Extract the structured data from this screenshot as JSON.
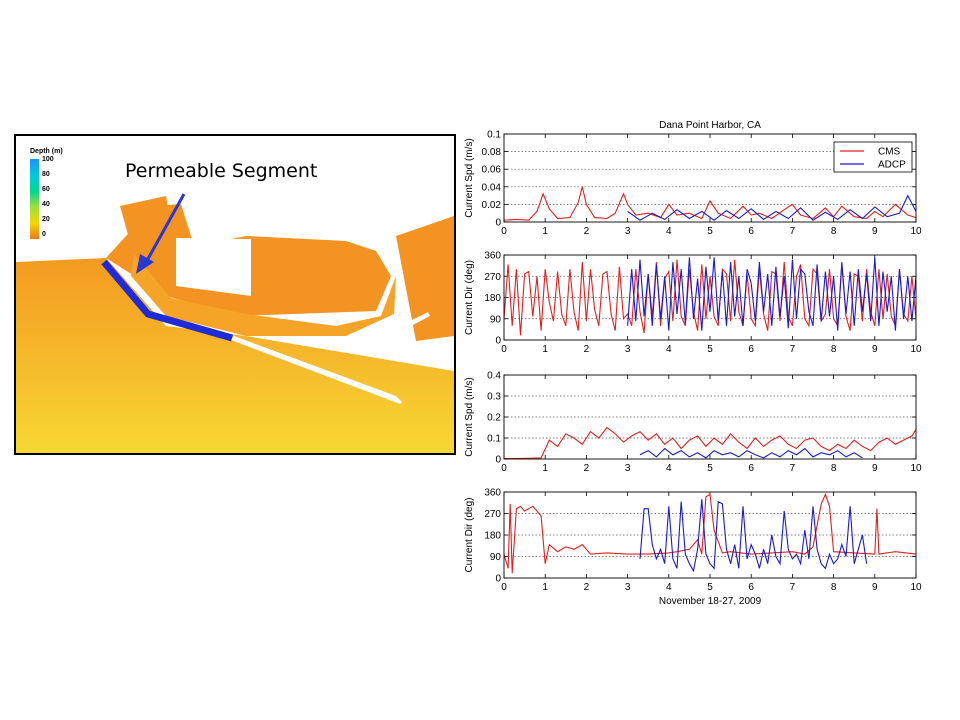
{
  "map": {
    "legend": {
      "title": "Depth (m)",
      "labels": [
        "100",
        "80",
        "60",
        "40",
        "20",
        "0"
      ],
      "colors": [
        "#1e90ff",
        "#00c8e0",
        "#00d890",
        "#9be03c",
        "#f0d800",
        "#f07818"
      ]
    },
    "annotation": "Permeable Segment",
    "colors": {
      "deep": "#f4d230",
      "shallow": "#f3951c",
      "land": "#ffffff",
      "segment": "#1f2bd6",
      "arrow": "#2838d0"
    }
  },
  "chart_data": [
    {
      "type": "line",
      "title": "Dana Point Harbor, CA",
      "ylabel": "Current Spd (m/s)",
      "xlim": [
        0,
        10
      ],
      "ylim": [
        0,
        0.1
      ],
      "yticks": [
        "0",
        "0.02",
        "0.04",
        "0.06",
        "0.08",
        "0.1"
      ],
      "xticks": [
        "0",
        "1",
        "2",
        "3",
        "4",
        "5",
        "6",
        "7",
        "8",
        "9",
        "10"
      ],
      "legend": [
        "CMS",
        "ADCP"
      ],
      "legend_position": "top-right",
      "grid": "horizontal dotted",
      "series": [
        {
          "name": "CMS",
          "color": "#e02020",
          "x": [
            0,
            0.3,
            0.6,
            0.8,
            0.95,
            1.1,
            1.3,
            1.6,
            1.8,
            1.9,
            2.0,
            2.2,
            2.5,
            2.7,
            2.9,
            3.0,
            3.2,
            3.5,
            3.8,
            4.0,
            4.2,
            4.5,
            4.8,
            5.0,
            5.2,
            5.5,
            5.8,
            6.0,
            6.2,
            6.5,
            6.8,
            7.0,
            7.2,
            7.5,
            7.8,
            8.0,
            8.2,
            8.5,
            8.8,
            9.0,
            9.2,
            9.5,
            9.8,
            10
          ],
          "y": [
            0.002,
            0.003,
            0.002,
            0.012,
            0.032,
            0.015,
            0.004,
            0.005,
            0.022,
            0.04,
            0.02,
            0.005,
            0.004,
            0.01,
            0.032,
            0.02,
            0.008,
            0.01,
            0.005,
            0.02,
            0.008,
            0.01,
            0.004,
            0.024,
            0.01,
            0.004,
            0.018,
            0.008,
            0.01,
            0.004,
            0.014,
            0.02,
            0.008,
            0.004,
            0.016,
            0.006,
            0.018,
            0.006,
            0.004,
            0.012,
            0.006,
            0.02,
            0.008,
            0.005
          ]
        },
        {
          "name": "ADCP",
          "color": "#1a1ad0",
          "x": [
            3.0,
            3.3,
            3.6,
            3.9,
            4.2,
            4.5,
            4.8,
            5.1,
            5.4,
            5.7,
            6.0,
            6.3,
            6.6,
            6.9,
            7.2,
            7.5,
            7.8,
            8.1,
            8.4,
            8.7,
            9.0,
            9.3,
            9.6,
            9.8,
            10
          ],
          "y": [
            0.012,
            0.002,
            0.01,
            0.003,
            0.014,
            0.004,
            0.012,
            0.002,
            0.013,
            0.004,
            0.015,
            0.003,
            0.012,
            0.004,
            0.016,
            0.002,
            0.011,
            0.003,
            0.014,
            0.004,
            0.017,
            0.006,
            0.01,
            0.03,
            0.012
          ]
        }
      ]
    },
    {
      "type": "line",
      "ylabel": "Current Dir (deg)",
      "xlim": [
        0,
        10
      ],
      "ylim": [
        0,
        360
      ],
      "yticks": [
        "0",
        "90",
        "180",
        "270",
        "360"
      ],
      "xticks": [
        "0",
        "1",
        "2",
        "3",
        "4",
        "5",
        "6",
        "7",
        "8",
        "9",
        "10"
      ],
      "grid": "horizontal dotted",
      "series": [
        {
          "name": "CMS",
          "color": "#e02020",
          "x": [
            0,
            0.1,
            0.2,
            0.3,
            0.4,
            0.5,
            0.6,
            0.7,
            0.8,
            0.9,
            1.0,
            1.1,
            1.2,
            1.3,
            1.4,
            1.5,
            1.6,
            1.7,
            1.8,
            1.9,
            2.0,
            2.1,
            2.2,
            2.3,
            2.4,
            2.5,
            2.6,
            2.7,
            2.8,
            2.9,
            3.0,
            3.1,
            3.2,
            3.3,
            3.4,
            3.5,
            3.6,
            3.7,
            3.8,
            3.9,
            4.0,
            4.1,
            4.2,
            4.3,
            4.4,
            4.5,
            4.6,
            4.7,
            4.8,
            4.9,
            5.0,
            5.1,
            5.2,
            5.3,
            5.4,
            5.5,
            5.6,
            5.7,
            5.8,
            5.9,
            6.0,
            6.1,
            6.2,
            6.3,
            6.4,
            6.5,
            6.6,
            6.7,
            6.8,
            6.9,
            7.0,
            7.1,
            7.2,
            7.3,
            7.4,
            7.5,
            7.6,
            7.7,
            7.8,
            7.9,
            8.0,
            8.1,
            8.2,
            8.3,
            8.4,
            8.5,
            8.6,
            8.7,
            8.8,
            8.9,
            9.0,
            9.1,
            9.2,
            9.3,
            9.4,
            9.5,
            9.6,
            9.7,
            9.8,
            9.9,
            10
          ],
          "y": [
            90,
            320,
            60,
            300,
            20,
            280,
            290,
            100,
            270,
            40,
            300,
            160,
            80,
            290,
            110,
            60,
            300,
            120,
            40,
            330,
            80,
            300,
            130,
            60,
            280,
            290,
            110,
            40,
            310,
            90,
            110,
            60,
            300,
            120,
            30,
            280,
            100,
            330,
            60,
            260,
            290,
            80,
            340,
            100,
            60,
            300,
            120,
            40,
            320,
            90,
            270,
            100,
            60,
            300,
            280,
            80,
            340,
            120,
            60,
            280,
            90,
            60,
            300,
            110,
            40,
            290,
            280,
            80,
            330,
            100,
            60,
            270,
            320,
            90,
            60,
            300,
            280,
            80,
            110,
            300,
            90,
            60,
            320,
            100,
            40,
            280,
            270,
            80,
            300,
            120,
            60,
            300,
            90,
            280,
            100,
            60,
            300,
            110,
            80,
            270,
            90
          ]
        },
        {
          "name": "ADCP",
          "color": "#1a1ad0",
          "x": [
            3.0,
            3.1,
            3.2,
            3.3,
            3.4,
            3.5,
            3.6,
            3.7,
            3.8,
            3.9,
            4.0,
            4.1,
            4.2,
            4.3,
            4.4,
            4.5,
            4.6,
            4.7,
            4.8,
            4.9,
            5.0,
            5.1,
            5.2,
            5.3,
            5.4,
            5.5,
            5.6,
            5.7,
            5.8,
            5.9,
            6.0,
            6.1,
            6.2,
            6.3,
            6.4,
            6.5,
            6.6,
            6.7,
            6.8,
            6.9,
            7.0,
            7.1,
            7.2,
            7.3,
            7.4,
            7.5,
            7.6,
            7.7,
            7.8,
            7.9,
            8.0,
            8.1,
            8.2,
            8.3,
            8.4,
            8.5,
            8.6,
            8.7,
            8.8,
            8.9,
            9.0,
            9.1,
            9.2,
            9.3,
            9.4,
            9.5,
            9.6,
            9.7,
            9.8,
            9.9,
            10
          ],
          "y": [
            60,
            300,
            80,
            340,
            100,
            280,
            60,
            320,
            90,
            270,
            40,
            330,
            110,
            300,
            70,
            350,
            90,
            260,
            40,
            310,
            120,
            350,
            80,
            290,
            60,
            330,
            100,
            270,
            60,
            300,
            240,
            80,
            330,
            120,
            280,
            60,
            310,
            100,
            270,
            50,
            340,
            90,
            300,
            280,
            120,
            60,
            320,
            80,
            290,
            100,
            270,
            40,
            330,
            110,
            290,
            60,
            300,
            120,
            280,
            80,
            350,
            60,
            290,
            120,
            270,
            40,
            300,
            90,
            270,
            80,
            270
          ]
        }
      ]
    },
    {
      "type": "line",
      "ylabel": "Current Spd (m/s)",
      "xlim": [
        0,
        10
      ],
      "ylim": [
        0,
        0.4
      ],
      "yticks": [
        "0",
        "0.1",
        "0.2",
        "0.3",
        "0.4"
      ],
      "xticks": [
        "0",
        "1",
        "2",
        "3",
        "4",
        "5",
        "6",
        "7",
        "8",
        "9",
        "10"
      ],
      "grid": "horizontal dotted",
      "series": [
        {
          "name": "CMS",
          "color": "#e02020",
          "x": [
            0,
            0.5,
            0.9,
            1.1,
            1.3,
            1.5,
            1.7,
            1.9,
            2.1,
            2.3,
            2.5,
            2.7,
            2.9,
            3.1,
            3.3,
            3.5,
            3.7,
            3.9,
            4.1,
            4.3,
            4.5,
            4.7,
            4.9,
            5.1,
            5.3,
            5.5,
            5.7,
            5.9,
            6.1,
            6.3,
            6.5,
            6.7,
            6.9,
            7.1,
            7.3,
            7.5,
            7.7,
            7.9,
            8.1,
            8.3,
            8.5,
            8.7,
            8.9,
            9.1,
            9.3,
            9.5,
            9.7,
            9.9,
            10
          ],
          "y": [
            0.002,
            0.003,
            0.005,
            0.09,
            0.06,
            0.12,
            0.1,
            0.07,
            0.13,
            0.1,
            0.15,
            0.12,
            0.08,
            0.11,
            0.13,
            0.09,
            0.12,
            0.07,
            0.1,
            0.05,
            0.09,
            0.11,
            0.06,
            0.1,
            0.07,
            0.12,
            0.08,
            0.05,
            0.1,
            0.06,
            0.09,
            0.11,
            0.07,
            0.05,
            0.09,
            0.1,
            0.06,
            0.04,
            0.07,
            0.05,
            0.09,
            0.06,
            0.04,
            0.08,
            0.1,
            0.07,
            0.09,
            0.11,
            0.14
          ]
        },
        {
          "name": "ADCP",
          "color": "#1a1ad0",
          "x": [
            3.3,
            3.5,
            3.7,
            3.9,
            4.1,
            4.3,
            4.5,
            4.7,
            4.9,
            5.1,
            5.3,
            5.5,
            5.7,
            5.9,
            6.1,
            6.3,
            6.5,
            6.7,
            6.9,
            7.1,
            7.3,
            7.5,
            7.7,
            7.9,
            8.1,
            8.3,
            8.5,
            8.7
          ],
          "y": [
            0.02,
            0.04,
            0.01,
            0.05,
            0.02,
            0.04,
            0.01,
            0.03,
            0.005,
            0.04,
            0.02,
            0.03,
            0.01,
            0.04,
            0.02,
            0.005,
            0.03,
            0.01,
            0.04,
            0.02,
            0.05,
            0.01,
            0.03,
            0.02,
            0.04,
            0.01,
            0.03,
            0.005
          ]
        }
      ]
    },
    {
      "type": "line",
      "ylabel": "Current Dir (deg)",
      "xlabel": "November 18-27, 2009",
      "xlim": [
        0,
        10
      ],
      "ylim": [
        0,
        360
      ],
      "yticks": [
        "0",
        "90",
        "180",
        "270",
        "360"
      ],
      "xticks": [
        "0",
        "1",
        "2",
        "3",
        "4",
        "5",
        "6",
        "7",
        "8",
        "9",
        "10"
      ],
      "grid": "horizontal dotted",
      "series": [
        {
          "name": "CMS",
          "color": "#e02020",
          "x": [
            0,
            0.1,
            0.15,
            0.2,
            0.3,
            0.4,
            0.5,
            0.7,
            0.9,
            1.0,
            1.1,
            1.3,
            1.5,
            1.7,
            1.9,
            2.1,
            2.5,
            3.0,
            3.5,
            4.0,
            4.2,
            4.5,
            4.7,
            4.8,
            4.9,
            5.0,
            5.1,
            5.3,
            5.5,
            6.0,
            6.5,
            7.0,
            7.3,
            7.5,
            7.7,
            7.8,
            7.9,
            8.0,
            8.5,
            9.0,
            9.05,
            9.1,
            9.5,
            10
          ],
          "y": [
            100,
            40,
            310,
            20,
            290,
            300,
            280,
            300,
            260,
            60,
            140,
            110,
            130,
            120,
            140,
            100,
            105,
            100,
            100,
            105,
            110,
            120,
            160,
            100,
            340,
            350,
            200,
            105,
            110,
            100,
            105,
            110,
            100,
            130,
            310,
            350,
            300,
            110,
            105,
            100,
            290,
            100,
            110,
            100
          ]
        },
        {
          "name": "ADCP",
          "color": "#1a1ad0",
          "x": [
            3.3,
            3.4,
            3.5,
            3.6,
            3.7,
            3.8,
            3.9,
            4.0,
            4.1,
            4.2,
            4.3,
            4.4,
            4.5,
            4.6,
            4.7,
            4.8,
            4.9,
            5.0,
            5.1,
            5.2,
            5.3,
            5.4,
            5.5,
            5.6,
            5.7,
            5.8,
            5.9,
            6.0,
            6.1,
            6.2,
            6.3,
            6.4,
            6.5,
            6.6,
            6.7,
            6.8,
            6.9,
            7.0,
            7.1,
            7.2,
            7.3,
            7.4,
            7.5,
            7.6,
            7.7,
            7.8,
            7.9,
            8.0,
            8.1,
            8.2,
            8.3,
            8.4,
            8.5,
            8.6,
            8.7,
            8.8
          ],
          "y": [
            80,
            290,
            290,
            140,
            80,
            120,
            60,
            300,
            80,
            40,
            320,
            100,
            60,
            30,
            120,
            330,
            100,
            60,
            40,
            320,
            310,
            120,
            60,
            140,
            40,
            300,
            80,
            140,
            100,
            40,
            120,
            60,
            180,
            90,
            60,
            280,
            120,
            80,
            100,
            60,
            200,
            80,
            300,
            120,
            60,
            40,
            100,
            60,
            80,
            140,
            90,
            300,
            60,
            120,
            180,
            60
          ]
        }
      ]
    }
  ]
}
